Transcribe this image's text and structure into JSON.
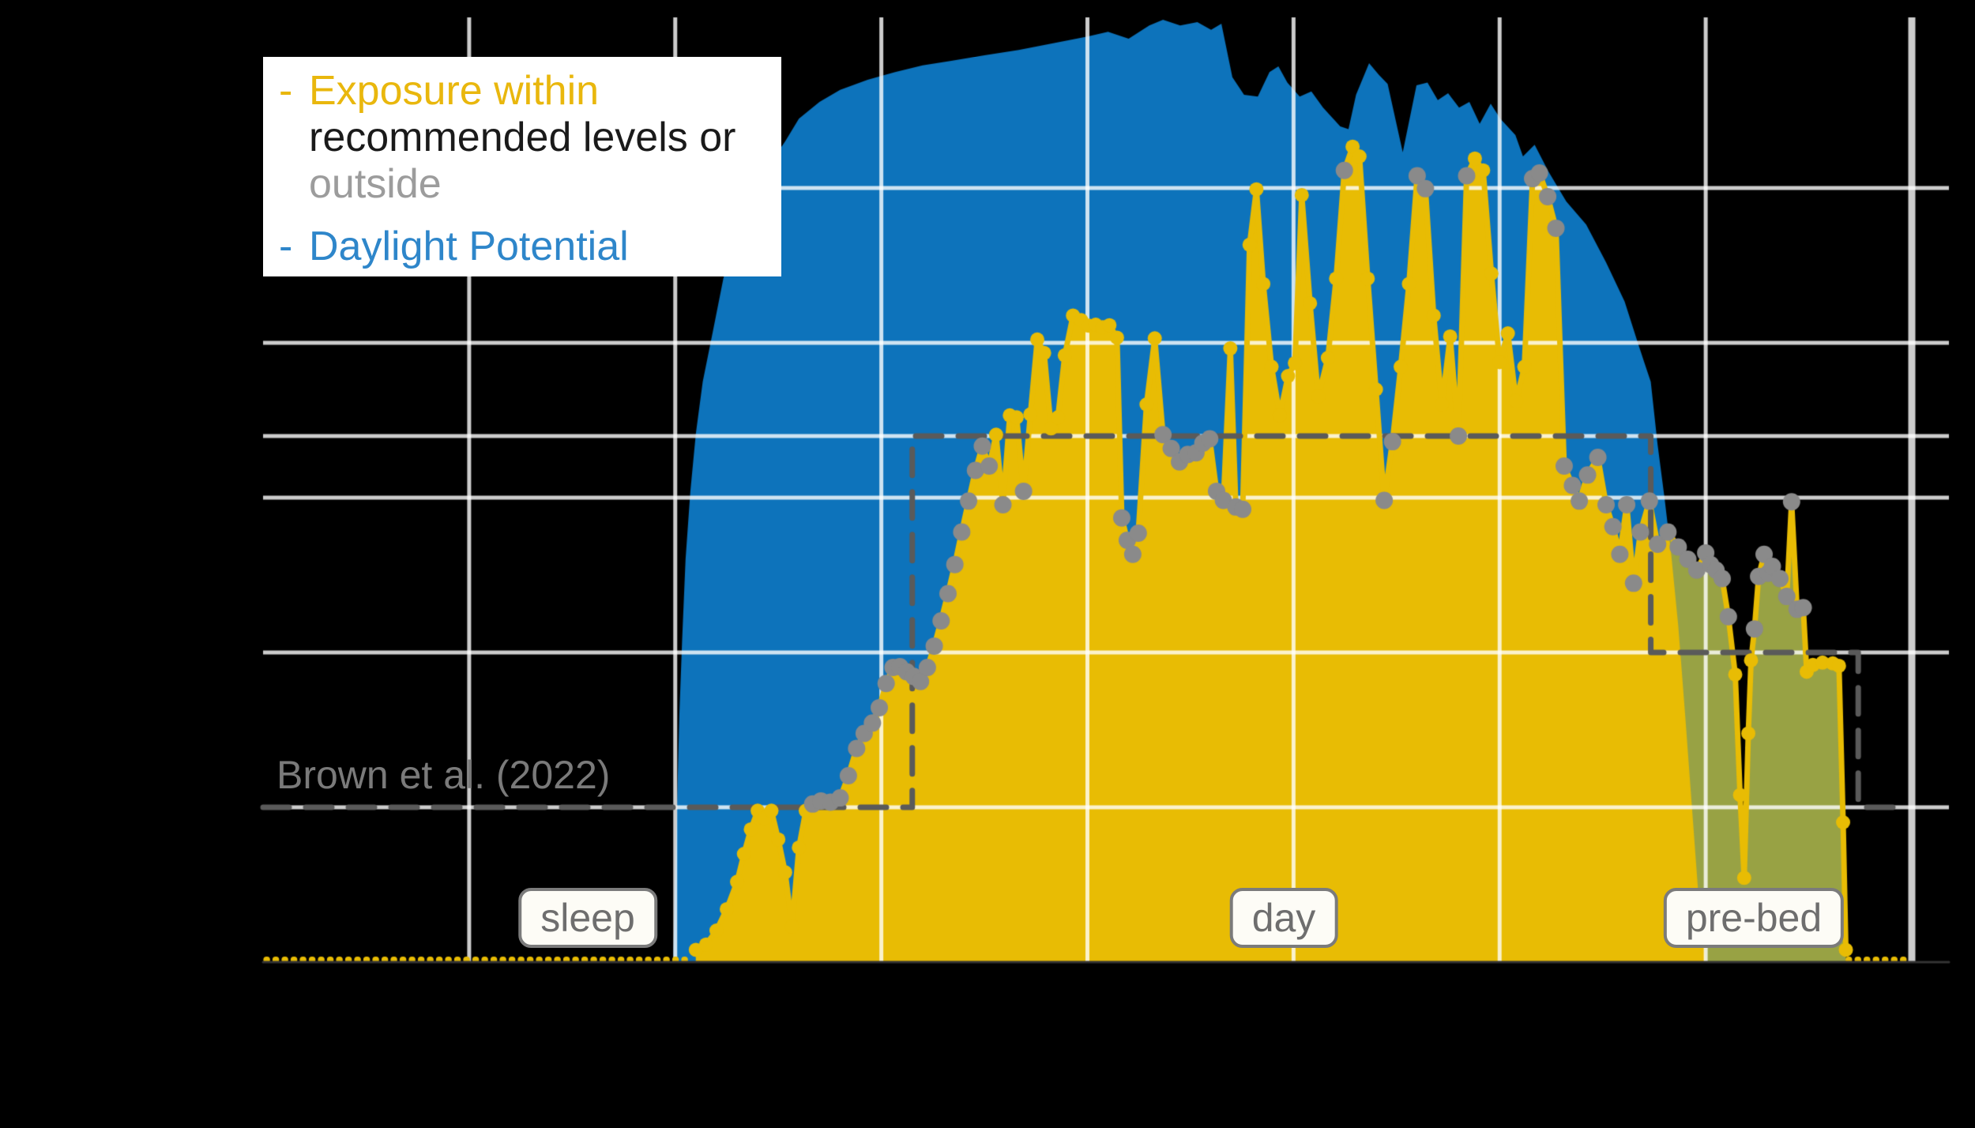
{
  "page": {
    "background": "#000000"
  },
  "legend": {
    "dash": "-",
    "exposure_within": "Exposure within",
    "recommended_levels_or": "recommended levels or",
    "outside": "outside",
    "daylight_potential": "Daylight Potential"
  },
  "period_labels": {
    "sleep": "sleep",
    "day": "day",
    "prebed": "pre-bed"
  },
  "colors": {
    "exposure_fill": "#e8bc04",
    "exposure_line": "#e8bc04",
    "exposure_exceeding_daylight_fill": "#98a244",
    "daylight_fill": "#0d73bb",
    "outside_marker": "#8a8a8a",
    "within_marker": "#e8bc04",
    "recommendation_dash": "#5a5a5a",
    "gridline": "rgba(255,255,255,0.8)",
    "background": "#000000"
  },
  "chart_data": {
    "type": "area",
    "title": "",
    "xlabel": "",
    "ylabel": "",
    "x_axis": {
      "unit": "hour of day",
      "range": [
        0,
        24
      ],
      "gridline_hours": [
        3,
        6,
        9,
        12,
        15,
        18,
        21,
        24
      ]
    },
    "y_axis": {
      "scale": "log",
      "range": [
        0.1,
        125000
      ],
      "gridline_values": [
        1,
        10,
        100,
        250,
        1000,
        10000
      ]
    },
    "night_level": 0.1,
    "baseline_segments": [
      [
        0.05,
        6.15
      ],
      [
        23.08,
        23.98
      ]
    ],
    "recommendation_step": {
      "label": "Brown et al. (2022)",
      "points": [
        [
          0,
          1
        ],
        [
          9.45,
          1
        ],
        [
          9.45,
          250
        ],
        [
          20.2,
          250
        ],
        [
          20.2,
          10
        ],
        [
          23.22,
          10
        ],
        [
          23.22,
          1
        ],
        [
          23.95,
          1
        ]
      ]
    },
    "series": [
      {
        "name": "Daylight Potential",
        "points": [
          [
            5.97,
            0.1
          ],
          [
            6.0,
            0.4
          ],
          [
            6.03,
            1.2
          ],
          [
            6.06,
            4
          ],
          [
            6.1,
            12
          ],
          [
            6.15,
            40
          ],
          [
            6.22,
            110
          ],
          [
            6.3,
            260
          ],
          [
            6.4,
            560
          ],
          [
            6.55,
            1200
          ],
          [
            6.7,
            2600
          ],
          [
            6.9,
            6000
          ],
          [
            7.1,
            10000
          ],
          [
            7.36,
            14000
          ],
          [
            7.6,
            20000
          ],
          [
            7.8,
            28000
          ],
          [
            8.1,
            36000
          ],
          [
            8.4,
            43000
          ],
          [
            8.8,
            50000
          ],
          [
            9.2,
            56000
          ],
          [
            9.6,
            62000
          ],
          [
            10.0,
            66000
          ],
          [
            10.5,
            72000
          ],
          [
            11.0,
            78000
          ],
          [
            11.5,
            86000
          ],
          [
            12.0,
            95000
          ],
          [
            12.3,
            102000
          ],
          [
            12.6,
            92000
          ],
          [
            12.9,
            112000
          ],
          [
            13.1,
            122000
          ],
          [
            13.35,
            112000
          ],
          [
            13.6,
            118000
          ],
          [
            13.8,
            105000
          ],
          [
            13.95,
            115000
          ],
          [
            14.11,
            52000
          ],
          [
            14.28,
            40000
          ],
          [
            14.48,
            39000
          ],
          [
            14.65,
            56000
          ],
          [
            14.78,
            61000
          ],
          [
            14.91,
            48000
          ],
          [
            15.09,
            39000
          ],
          [
            15.26,
            42000
          ],
          [
            15.43,
            33000
          ],
          [
            15.68,
            25000
          ],
          [
            15.8,
            24000
          ],
          [
            15.91,
            40000
          ],
          [
            16.1,
            64000
          ],
          [
            16.24,
            54000
          ],
          [
            16.37,
            47000
          ],
          [
            16.59,
            17000
          ],
          [
            16.79,
            46000
          ],
          [
            16.95,
            48000
          ],
          [
            17.1,
            37000
          ],
          [
            17.25,
            41000
          ],
          [
            17.41,
            33000
          ],
          [
            17.56,
            36000
          ],
          [
            17.71,
            26000
          ],
          [
            17.87,
            35000
          ],
          [
            18.01,
            28000
          ],
          [
            18.23,
            22000
          ],
          [
            18.34,
            16000
          ],
          [
            18.51,
            19000
          ],
          [
            18.71,
            12800
          ],
          [
            18.97,
            8200
          ],
          [
            19.26,
            5800
          ],
          [
            19.55,
            3300
          ],
          [
            19.82,
            1850
          ],
          [
            20.0,
            1040
          ],
          [
            20.1,
            760
          ],
          [
            20.2,
            560
          ],
          [
            20.3,
            220
          ],
          [
            20.4,
            100
          ],
          [
            20.5,
            42
          ],
          [
            20.6,
            15
          ],
          [
            20.7,
            4
          ],
          [
            20.8,
            1
          ],
          [
            20.9,
            0.25
          ],
          [
            21.0,
            0.1
          ]
        ]
      },
      {
        "name": "Exposure",
        "points": [
          [
            6.3,
            0.12
          ],
          [
            6.45,
            0.13
          ],
          [
            6.6,
            0.16
          ],
          [
            6.75,
            0.22
          ],
          [
            6.9,
            0.33
          ],
          [
            7.0,
            0.5
          ],
          [
            7.1,
            0.72
          ],
          [
            7.2,
            0.95
          ],
          [
            7.3,
            0.85
          ],
          [
            7.4,
            0.95
          ],
          [
            7.5,
            0.62
          ],
          [
            7.6,
            0.38
          ],
          [
            7.7,
            0.17
          ],
          [
            7.8,
            0.55
          ],
          [
            7.9,
            0.95
          ],
          [
            8.0,
            1.05,
            1
          ],
          [
            8.12,
            1.1,
            1
          ],
          [
            8.26,
            1.08,
            1
          ],
          [
            8.4,
            1.15,
            1
          ],
          [
            8.52,
            1.6,
            1
          ],
          [
            8.64,
            2.4,
            1
          ],
          [
            8.75,
            3,
            1
          ],
          [
            8.87,
            3.5,
            1
          ],
          [
            8.97,
            4.4,
            1
          ],
          [
            9.07,
            6.3,
            1
          ],
          [
            9.17,
            8,
            1
          ],
          [
            9.27,
            8.1,
            1
          ],
          [
            9.37,
            7.5,
            1
          ],
          [
            9.47,
            7,
            1
          ],
          [
            9.57,
            6.5,
            1
          ],
          [
            9.67,
            8,
            1
          ],
          [
            9.77,
            11,
            1
          ],
          [
            9.87,
            16,
            1
          ],
          [
            9.97,
            24,
            1
          ],
          [
            10.07,
            37,
            1
          ],
          [
            10.17,
            60,
            1
          ],
          [
            10.27,
            95,
            1
          ],
          [
            10.37,
            150,
            1
          ],
          [
            10.47,
            215,
            1
          ],
          [
            10.57,
            160,
            1
          ],
          [
            10.67,
            255
          ],
          [
            10.77,
            90,
            1
          ],
          [
            10.87,
            340
          ],
          [
            10.97,
            330
          ],
          [
            11.07,
            110,
            1
          ],
          [
            11.17,
            345
          ],
          [
            11.27,
            1050
          ],
          [
            11.37,
            860
          ],
          [
            11.47,
            280
          ],
          [
            11.57,
            330
          ],
          [
            11.67,
            830
          ],
          [
            11.79,
            1500
          ],
          [
            11.91,
            1400
          ],
          [
            12.02,
            1290
          ],
          [
            12.12,
            1310
          ],
          [
            12.22,
            1260
          ],
          [
            12.32,
            1300
          ],
          [
            12.43,
            1080
          ],
          [
            12.5,
            74,
            1
          ],
          [
            12.58,
            53,
            1
          ],
          [
            12.66,
            43,
            1
          ],
          [
            12.74,
            59,
            1
          ],
          [
            12.86,
            400
          ],
          [
            12.98,
            1070
          ],
          [
            13.1,
            255,
            1
          ],
          [
            13.22,
            208,
            1
          ],
          [
            13.34,
            170,
            1
          ],
          [
            13.46,
            190,
            1
          ],
          [
            13.58,
            195,
            1
          ],
          [
            13.68,
            225,
            1
          ],
          [
            13.78,
            240,
            1
          ],
          [
            13.88,
            110,
            1
          ],
          [
            13.98,
            96,
            1
          ],
          [
            14.08,
            920
          ],
          [
            14.16,
            87,
            1
          ],
          [
            14.26,
            84,
            1
          ],
          [
            14.36,
            4300
          ],
          [
            14.46,
            9800
          ],
          [
            14.56,
            2400
          ],
          [
            14.68,
            700
          ],
          [
            14.8,
            340
          ],
          [
            14.92,
            610
          ],
          [
            15.02,
            740
          ],
          [
            15.12,
            9000
          ],
          [
            15.24,
            1800
          ],
          [
            15.36,
            450
          ],
          [
            15.5,
            800
          ],
          [
            15.62,
            2600
          ],
          [
            15.74,
            13000,
            1
          ],
          [
            15.86,
            18500
          ],
          [
            15.96,
            16000
          ],
          [
            16.08,
            2600
          ],
          [
            16.2,
            500
          ],
          [
            16.32,
            96,
            1
          ],
          [
            16.44,
            230,
            1
          ],
          [
            16.56,
            700
          ],
          [
            16.68,
            2400
          ],
          [
            16.8,
            12000,
            1
          ],
          [
            16.92,
            9900,
            1
          ],
          [
            17.04,
            1500
          ],
          [
            17.16,
            400
          ],
          [
            17.28,
            1100
          ],
          [
            17.4,
            250,
            1
          ],
          [
            17.52,
            12000,
            1
          ],
          [
            17.64,
            15500
          ],
          [
            17.76,
            13000
          ],
          [
            17.88,
            2800
          ],
          [
            18.0,
            750
          ],
          [
            18.12,
            1150
          ],
          [
            18.24,
            420
          ],
          [
            18.36,
            700
          ],
          [
            18.48,
            11500,
            1
          ],
          [
            18.58,
            12500,
            1
          ],
          [
            18.7,
            8800,
            1
          ],
          [
            18.82,
            5500,
            1
          ],
          [
            18.94,
            160,
            1
          ],
          [
            19.06,
            120,
            1
          ],
          [
            19.16,
            95,
            1
          ],
          [
            19.28,
            140,
            1
          ],
          [
            19.43,
            182,
            1
          ],
          [
            19.55,
            90,
            1
          ],
          [
            19.65,
            65,
            1
          ],
          [
            19.75,
            43,
            1
          ],
          [
            19.85,
            90,
            1
          ],
          [
            19.95,
            28,
            1
          ],
          [
            20.05,
            60,
            1
          ],
          [
            20.18,
            95,
            1
          ],
          [
            20.3,
            50,
            1
          ],
          [
            20.45,
            60,
            1
          ],
          [
            20.6,
            48,
            1
          ],
          [
            20.74,
            40,
            1
          ],
          [
            20.87,
            34,
            1
          ],
          [
            21.0,
            44,
            1
          ],
          [
            21.07,
            37,
            1
          ],
          [
            21.15,
            34,
            1
          ],
          [
            21.24,
            30,
            1
          ],
          [
            21.33,
            17,
            1
          ],
          [
            21.43,
            7.2
          ],
          [
            21.5,
            1.2
          ],
          [
            21.56,
            0.35
          ],
          [
            21.62,
            3
          ],
          [
            21.66,
            8.9
          ],
          [
            21.71,
            14.2,
            1
          ],
          [
            21.77,
            31,
            1
          ],
          [
            21.85,
            43,
            1
          ],
          [
            21.91,
            32.5,
            1
          ],
          [
            21.97,
            36,
            1
          ],
          [
            22.08,
            30,
            1
          ],
          [
            22.18,
            23,
            1
          ],
          [
            22.25,
            94,
            1
          ],
          [
            22.33,
            19,
            1
          ],
          [
            22.42,
            19.5,
            1
          ],
          [
            22.47,
            7.5
          ],
          [
            22.56,
            8.3
          ],
          [
            22.7,
            8.6
          ],
          [
            22.85,
            8.5
          ],
          [
            22.94,
            8.2
          ],
          [
            23.0,
            0.8
          ],
          [
            23.04,
            0.12
          ]
        ]
      }
    ]
  }
}
